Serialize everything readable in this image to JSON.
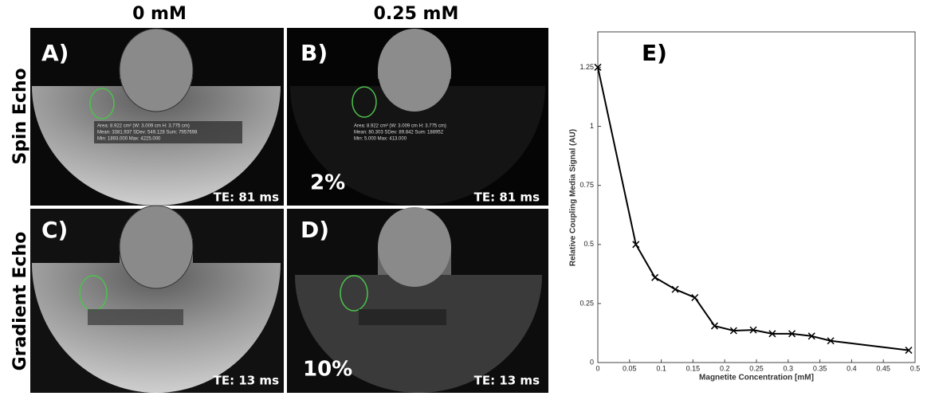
{
  "column_headers": [
    "0 mM",
    "0.25 mM"
  ],
  "row_labels": [
    "Spin Echo",
    "Gradient Echo"
  ],
  "panels": [
    {
      "label": "A)",
      "te": "TE: 81 ms",
      "roi_stats": [
        "Area: 8.922 cm² (W: 3.009 cm H: 3.775 cm)",
        "Mean: 3381.937   SDev: 549.128   Sum: 7957698",
        "Min: 1893.000   Max: 4225.000"
      ]
    },
    {
      "label": "B)",
      "te": "TE: 81 ms",
      "signal": "2%",
      "roi_stats": [
        "Area: 8.922 cm² (W: 3.009 cm H: 3.775 cm)",
        "Mean: 80.303   SDev: 89.842   Sum: 188952",
        "Min: 5.000   Max: 413.000"
      ]
    },
    {
      "label": "C)",
      "te": "TE: 13 ms"
    },
    {
      "label": "D)",
      "te": "TE: 13 ms",
      "signal": "10%"
    }
  ],
  "chart_data": {
    "type": "line",
    "label": "E)",
    "x": [
      0,
      0.06,
      0.09,
      0.122,
      0.153,
      0.184,
      0.214,
      0.245,
      0.275,
      0.306,
      0.337,
      0.367,
      0.49
    ],
    "values": [
      1.25,
      0.5,
      0.36,
      0.31,
      0.275,
      0.155,
      0.135,
      0.138,
      0.122,
      0.122,
      0.112,
      0.092,
      0.052
    ],
    "color": "#000000",
    "xlabel": "Magnetite Concentration [mM]",
    "ylabel": "Relative Coupling Media Signal (AU)",
    "xlim": [
      0,
      0.5
    ],
    "ylim": [
      0,
      1.4
    ],
    "xticks": [
      0,
      0.05,
      0.1,
      0.15,
      0.2,
      0.25,
      0.3,
      0.35,
      0.4,
      0.45,
      0.5
    ],
    "yticks": [
      0,
      0.25,
      0.5,
      0.75,
      1,
      1.25
    ],
    "grid": false
  }
}
